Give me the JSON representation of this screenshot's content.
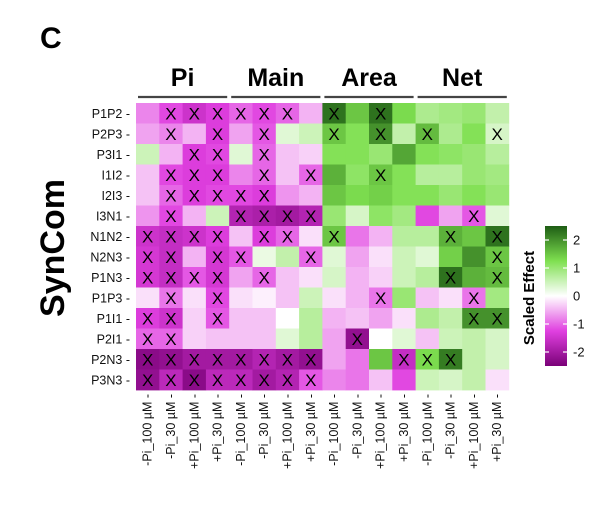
{
  "panel_label": "C",
  "chart_data": {
    "type": "heatmap",
    "title": "",
    "ylabel": "SynCom",
    "groups": [
      "Pi",
      "Main",
      "Area",
      "Net"
    ],
    "columns": [
      "-Pi_100 µM",
      "-Pi_30 µM",
      "+Pi_100 µM",
      "+Pi_30 µM",
      "-Pi_100 µM",
      "-Pi_30 µM",
      "+Pi_100 µM",
      "+Pi_30 µM",
      "-Pi_100 µM",
      "-Pi_30 µM",
      "+Pi_100 µM",
      "+Pi_30 µM",
      "-Pi_100 µM",
      "-Pi_30 µM",
      "+Pi_100 µM",
      "+Pi_30 µM"
    ],
    "rows": [
      "P1P2",
      "P2P3",
      "P3I1",
      "I1I2",
      "I2I3",
      "I3N1",
      "N1N2",
      "N2N3",
      "P1N3",
      "P1P3",
      "P1I1",
      "P2I1",
      "P2N3",
      "P3N3"
    ],
    "values": [
      [
        -0.8,
        -1.2,
        -1.5,
        -1.3,
        -1.0,
        -1.2,
        -1.0,
        -0.5,
        2.3,
        1.5,
        2.3,
        1.3,
        0.8,
        0.9,
        1.0,
        0.6
      ],
      [
        -0.6,
        -0.8,
        -0.5,
        -1.3,
        -0.6,
        -1.1,
        0.3,
        0.5,
        1.5,
        1.2,
        2.0,
        0.6,
        1.6,
        0.8,
        1.2,
        0.4
      ],
      [
        0.5,
        -0.5,
        -1.3,
        -1.2,
        0.3,
        -1.0,
        -0.4,
        -0.3,
        1.2,
        1.2,
        1.0,
        1.8,
        1.2,
        1.1,
        1.0,
        0.7
      ],
      [
        -0.4,
        -1.2,
        -1.3,
        -1.3,
        -0.8,
        -1.0,
        -0.4,
        -1.0,
        1.7,
        1.1,
        1.5,
        1.2,
        0.7,
        0.7,
        1.0,
        0.9
      ],
      [
        -0.4,
        -1.0,
        -1.3,
        -1.2,
        -1.2,
        -1.3,
        -0.7,
        -0.5,
        1.5,
        1.3,
        1.4,
        1.2,
        1.2,
        1.0,
        1.2,
        1.0
      ],
      [
        -0.7,
        -1.2,
        -0.5,
        0.5,
        -1.8,
        -1.9,
        -2.0,
        -1.8,
        1.0,
        0.4,
        1.1,
        0.9,
        -1.2,
        -0.6,
        -1.1,
        0.3
      ],
      [
        -1.5,
        -1.6,
        -1.5,
        -1.3,
        -0.4,
        -1.3,
        -1.0,
        -0.2,
        1.5,
        -0.9,
        -0.5,
        0.7,
        0.7,
        1.7,
        1.5,
        2.3
      ],
      [
        -1.4,
        -1.6,
        -0.5,
        -1.4,
        -1.1,
        0.2,
        0.6,
        -1.0,
        0.3,
        -0.6,
        -0.2,
        0.5,
        0.3,
        1.4,
        2.0,
        1.5
      ],
      [
        -1.4,
        -1.6,
        -1.1,
        -1.4,
        -0.6,
        -1.0,
        -0.4,
        -0.2,
        0.4,
        -0.5,
        -0.3,
        0.5,
        0.7,
        2.3,
        1.7,
        1.6
      ],
      [
        -0.2,
        -0.9,
        -0.2,
        -1.2,
        -0.2,
        -0.1,
        -0.4,
        0.5,
        -0.2,
        -0.5,
        -0.9,
        1.0,
        -0.4,
        -0.2,
        -0.9,
        0.9
      ],
      [
        -1.3,
        -1.5,
        -0.3,
        -1.1,
        -0.4,
        -0.4,
        0.0,
        0.7,
        -0.5,
        -0.4,
        -0.6,
        -0.2,
        0.8,
        0.6,
        2.0,
        2.0
      ],
      [
        -1.0,
        -1.0,
        -0.3,
        -0.4,
        -0.4,
        -0.4,
        0.3,
        0.7,
        -0.6,
        -2.2,
        0.0,
        0.3,
        -0.4,
        0.5,
        0.6,
        0.4
      ],
      [
        -2.3,
        -2.2,
        -2.0,
        -2.0,
        -2.0,
        -1.8,
        -2.0,
        -2.2,
        -0.6,
        -0.9,
        1.5,
        -1.6,
        1.3,
        2.2,
        0.6,
        0.4
      ],
      [
        -2.2,
        -1.7,
        -2.3,
        -1.7,
        -1.7,
        -2.0,
        -1.8,
        -1.1,
        -0.8,
        -0.9,
        -0.4,
        -1.2,
        0.5,
        0.4,
        0.6,
        -0.2
      ]
    ],
    "marks": [
      [
        0,
        1,
        1,
        1,
        1,
        1,
        1,
        0,
        1,
        0,
        1,
        0,
        0,
        0,
        0,
        0
      ],
      [
        0,
        1,
        0,
        1,
        0,
        1,
        0,
        0,
        1,
        0,
        1,
        0,
        1,
        0,
        0,
        1
      ],
      [
        0,
        0,
        1,
        1,
        0,
        1,
        0,
        0,
        0,
        0,
        0,
        0,
        0,
        0,
        0,
        0
      ],
      [
        0,
        1,
        1,
        1,
        0,
        1,
        0,
        1,
        0,
        0,
        1,
        0,
        0,
        0,
        0,
        0
      ],
      [
        0,
        1,
        1,
        1,
        1,
        1,
        0,
        0,
        0,
        0,
        0,
        0,
        0,
        0,
        0,
        0
      ],
      [
        0,
        1,
        0,
        0,
        1,
        1,
        1,
        1,
        0,
        0,
        0,
        0,
        0,
        0,
        1,
        0
      ],
      [
        1,
        1,
        1,
        1,
        0,
        1,
        1,
        0,
        1,
        0,
        0,
        0,
        0,
        1,
        0,
        1
      ],
      [
        1,
        1,
        0,
        1,
        1,
        0,
        0,
        1,
        0,
        0,
        0,
        0,
        0,
        0,
        0,
        1
      ],
      [
        1,
        1,
        1,
        1,
        0,
        1,
        0,
        0,
        0,
        0,
        0,
        0,
        0,
        1,
        0,
        1
      ],
      [
        0,
        1,
        0,
        1,
        0,
        0,
        0,
        0,
        0,
        0,
        1,
        0,
        0,
        0,
        1,
        0
      ],
      [
        1,
        1,
        0,
        1,
        0,
        0,
        0,
        0,
        0,
        0,
        0,
        0,
        0,
        0,
        1,
        1
      ],
      [
        1,
        1,
        0,
        0,
        0,
        0,
        0,
        0,
        0,
        1,
        0,
        0,
        0,
        0,
        0,
        0
      ],
      [
        1,
        1,
        1,
        1,
        1,
        1,
        1,
        1,
        0,
        0,
        0,
        1,
        1,
        1,
        0,
        0
      ],
      [
        1,
        1,
        1,
        1,
        1,
        1,
        1,
        1,
        0,
        0,
        0,
        0,
        0,
        0,
        0,
        0
      ]
    ],
    "mark_symbol": "X",
    "legend": {
      "title": "Scaled Effect",
      "ticks": [
        2,
        1,
        0,
        -1,
        -2
      ],
      "tick_labels": [
        "2",
        "1",
        "0",
        "-1",
        "-2"
      ],
      "range": [
        -2.5,
        2.5
      ],
      "colors": {
        "low": "#7a0177",
        "mid_low": "#e040e0",
        "mid": "#ffffff",
        "mid_high": "#7fe050",
        "high": "#1e5d14"
      }
    }
  }
}
